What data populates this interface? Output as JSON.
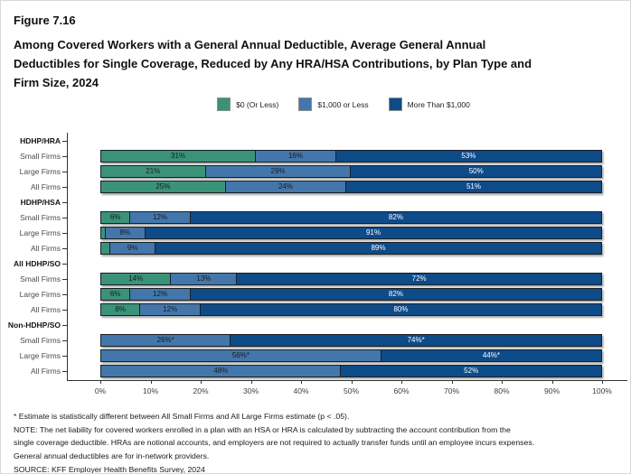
{
  "header": {
    "figure_label": "Figure 7.16",
    "title_lines": [
      "Among Covered Workers with a General Annual Deductible, Average General Annual",
      "Deductibles for Single Coverage, Reduced by Any HRA/HSA Contributions, by Plan Type and",
      "Firm Size, 2024"
    ]
  },
  "chart_data": {
    "type": "bar",
    "variant": "horizontal-stacked",
    "grid": false,
    "stack_total": 100,
    "legend": {
      "position": "top-center",
      "entries": [
        {
          "label": "$0 (Or Less)",
          "color": "#3A9378",
          "value_text_color": "#1a1a1a"
        },
        {
          "label": "$1,000 or Less",
          "color": "#4377AB",
          "value_text_color": "#1a1a1a"
        },
        {
          "label": "More Than $1,000",
          "color": "#0E4B89",
          "value_text_color": "#ffffff"
        }
      ]
    },
    "x_axis": {
      "min": 0,
      "max": 100,
      "tick_step": 10,
      "tick_labels": [
        "0%",
        "10%",
        "20%",
        "30%",
        "40%",
        "50%",
        "60%",
        "70%",
        "80%",
        "90%",
        "100%"
      ]
    },
    "groups": [
      {
        "name": "HDHP/HRA",
        "rows": [
          {
            "label": "Small Firms",
            "values": [
              31,
              16,
              53
            ],
            "display": [
              "31%",
              "16%",
              "53%"
            ]
          },
          {
            "label": "Large Firms",
            "values": [
              21,
              29,
              50
            ],
            "display": [
              "21%",
              "29%",
              "50%"
            ]
          },
          {
            "label": "All Firms",
            "values": [
              25,
              24,
              51
            ],
            "display": [
              "25%",
              "24%",
              "51%"
            ]
          }
        ]
      },
      {
        "name": "HDHP/HSA",
        "rows": [
          {
            "label": "Small Firms",
            "values": [
              6,
              12,
              82
            ],
            "display": [
              "6%",
              "12%",
              "82%"
            ]
          },
          {
            "label": "Large Firms",
            "values": [
              1,
              8,
              91
            ],
            "display": [
              "",
              "8%",
              "91%"
            ]
          },
          {
            "label": "All Firms",
            "values": [
              2,
              9,
              89
            ],
            "display": [
              "",
              "9%",
              "89%"
            ]
          }
        ]
      },
      {
        "name": "All HDHP/SO",
        "rows": [
          {
            "label": "Small Firms",
            "values": [
              14,
              13,
              72
            ],
            "display": [
              "14%",
              "13%",
              "72%"
            ]
          },
          {
            "label": "Large Firms",
            "values": [
              6,
              12,
              82
            ],
            "display": [
              "6%",
              "12%",
              "82%"
            ]
          },
          {
            "label": "All Firms",
            "values": [
              8,
              12,
              80
            ],
            "display": [
              "8%",
              "12%",
              "80%"
            ]
          }
        ]
      },
      {
        "name": "Non-HDHP/SO",
        "rows": [
          {
            "label": "Small Firms",
            "values": [
              0,
              26,
              74
            ],
            "display": [
              "",
              "26%*",
              "74%*"
            ]
          },
          {
            "label": "Large Firms",
            "values": [
              0,
              56,
              44
            ],
            "display": [
              "",
              "56%*",
              "44%*"
            ]
          },
          {
            "label": "All Firms",
            "values": [
              0,
              48,
              52
            ],
            "display": [
              "",
              "48%",
              "52%"
            ]
          }
        ]
      }
    ]
  },
  "footnotes": {
    "lines": [
      "* Estimate is statistically different between All Small Firms and All Large Firms estimate (p < .05).",
      "NOTE: The net liability for covered workers enrolled in a plan with an HSA or HRA is calculated by subtracting the account contribution from the",
      "single coverage deductible. HRAs are notional accounts, and employers are not required to actually transfer funds until an employee incurs expenses.",
      "General annual deductibles are for in-network providers.",
      "SOURCE: KFF Employer Health Benefits Survey, 2024"
    ]
  }
}
